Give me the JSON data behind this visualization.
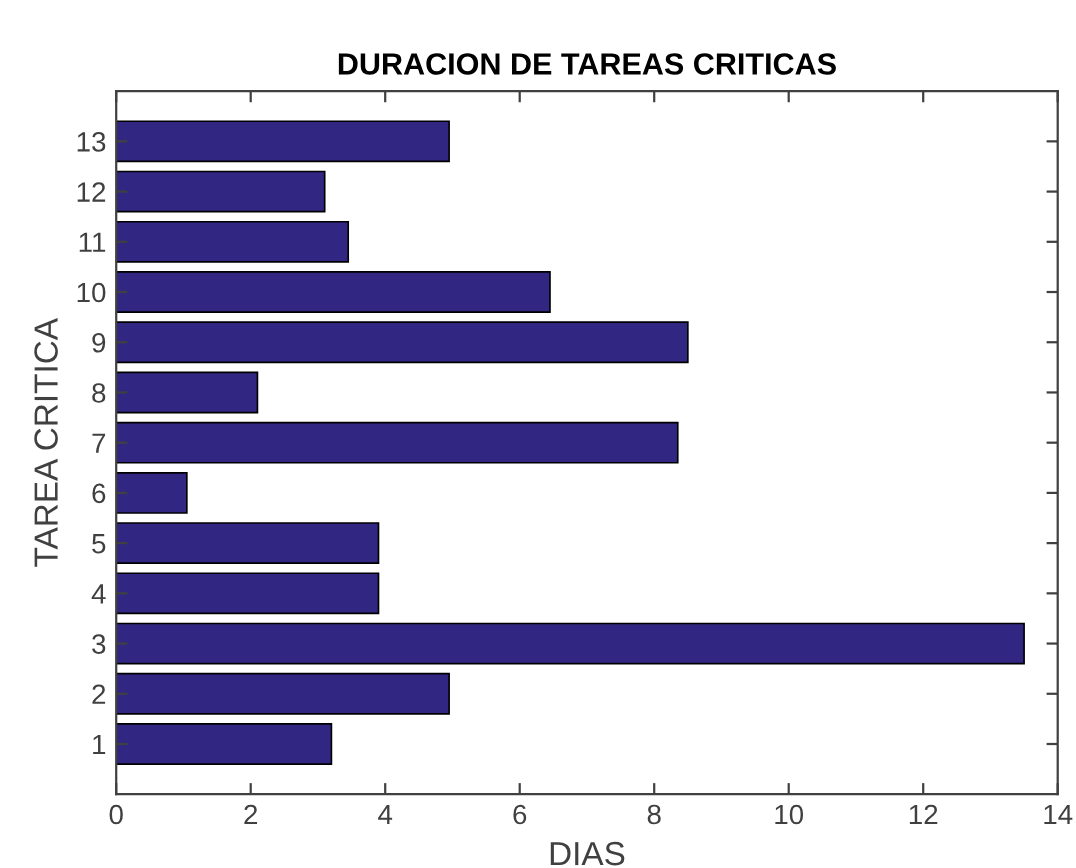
{
  "chart_data": {
    "type": "bar",
    "orientation": "horizontal",
    "title": "DURACION DE TAREAS CRITICAS",
    "xlabel": "DIAS",
    "ylabel": "TAREA CRITICA",
    "categories": [
      "13",
      "12",
      "11",
      "10",
      "9",
      "8",
      "7",
      "6",
      "5",
      "4",
      "3",
      "2",
      "1"
    ],
    "series": [
      {
        "color": "#312783",
        "values": [
          4.95,
          3.1,
          3.45,
          6.45,
          8.5,
          2.1,
          8.35,
          1.05,
          3.9,
          3.9,
          13.5,
          4.95,
          3.2
        ]
      }
    ],
    "xlim": [
      0,
      14
    ],
    "xticks": [
      0,
      2,
      4,
      6,
      8,
      10,
      12,
      14
    ],
    "grid": false,
    "legend": false
  }
}
